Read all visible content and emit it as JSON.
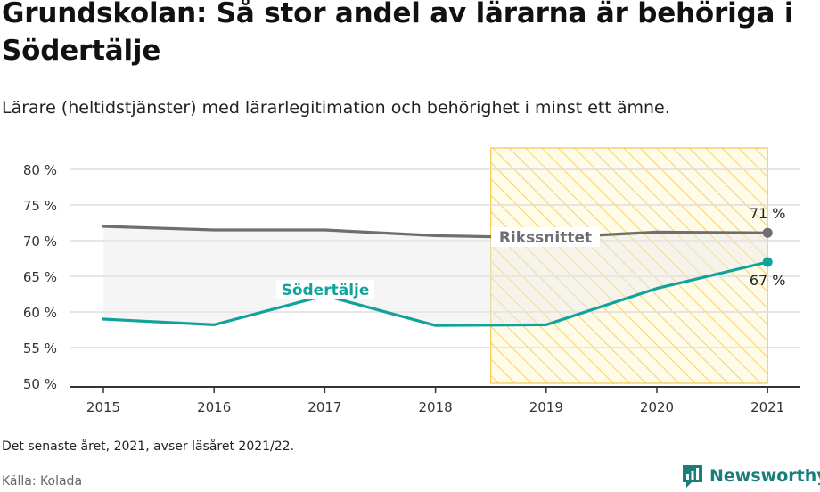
{
  "header": {
    "title": "Grundskolan: Så stor andel av lärarna är behöriga i Södertälje",
    "subtitle": "Lärare (heltidstjänster) med lärarlegitimation och behörighet i minst ett ämne."
  },
  "footer": {
    "note": "Det senaste året, 2021, avser läsåret 2021/22.",
    "source": "Källa: Kolada",
    "brand": "Newsworthy"
  },
  "colors": {
    "sodertalje": "#11a39b",
    "rikssnittet": "#706d72",
    "highlight": "#f2c94c",
    "axis": "#333333",
    "grid": "#dddddd"
  },
  "chart_data": {
    "type": "line",
    "x": [
      "2015",
      "2016",
      "2017",
      "2018",
      "2019",
      "2020",
      "2021"
    ],
    "ylim": [
      50,
      80
    ],
    "yticks": [
      "50 %",
      "55 %",
      "60 %",
      "65 %",
      "70 %",
      "75 %",
      "80 %"
    ],
    "ytick_values": [
      50,
      55,
      60,
      65,
      70,
      75,
      80
    ],
    "grid": true,
    "highlight_range": [
      "2018",
      "2021"
    ],
    "series": [
      {
        "name": "Rikssnittet",
        "values": [
          72.0,
          71.5,
          71.5,
          70.7,
          70.4,
          71.2,
          71.1
        ],
        "end_label": "71 %"
      },
      {
        "name": "Södertälje",
        "values": [
          59.0,
          58.2,
          62.3,
          58.1,
          58.2,
          63.3,
          67.0
        ],
        "end_label": "67 %"
      }
    ]
  }
}
